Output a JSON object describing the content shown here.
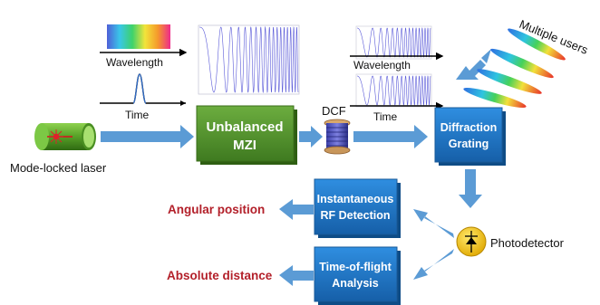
{
  "colors": {
    "arrow": "#5b9bd5",
    "blue_box": "#1f78c8",
    "green_box": "#4f8c2a",
    "red_text": "#b3202a",
    "photodetector": "#f2c200"
  },
  "spectrum_panel": {
    "wavelength_label": "Wavelength",
    "time_label": "Time"
  },
  "right_panel": {
    "wavelength_label": "Wavelength",
    "time_label": "Time"
  },
  "laser": {
    "label": "Mode-locked laser",
    "icon": "laser-icon"
  },
  "mzi": {
    "line1": "Unbalanced",
    "line2": "MZI"
  },
  "dcf": {
    "label": "DCF",
    "icon": "fiber-spool-icon"
  },
  "grating": {
    "line1": "Diffraction",
    "line2": "Grating"
  },
  "users": {
    "label": "Multiple users"
  },
  "rf_detection": {
    "line1": "Instantaneous",
    "line2": "RF Detection"
  },
  "tof": {
    "line1": "Time-of-flight",
    "line2": "Analysis"
  },
  "photodetector": {
    "label": "Photodetector",
    "icon": "photodiode-icon"
  },
  "outputs": {
    "angular": "Angular position",
    "distance": "Absolute distance"
  }
}
